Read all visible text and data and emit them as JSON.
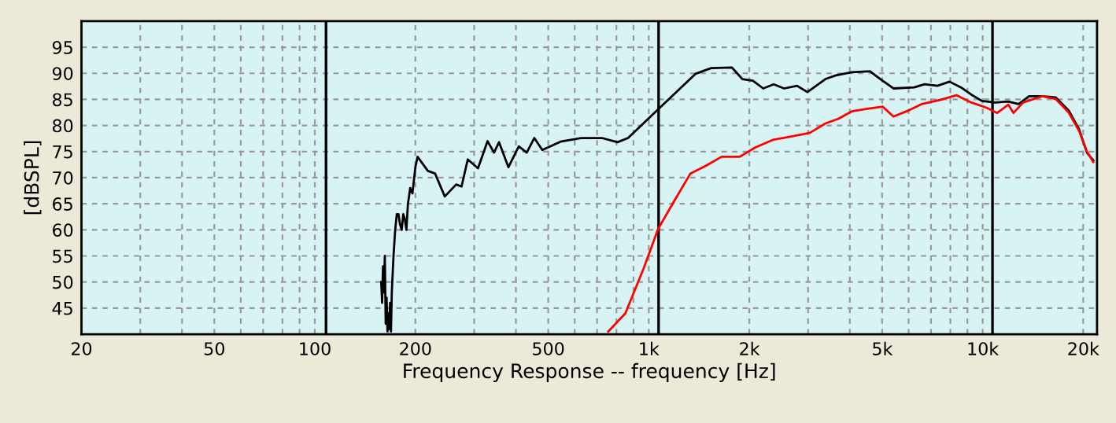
{
  "chart_data": {
    "type": "line",
    "xlabel": "Frequency Response -- frequency [Hz]",
    "ylabel": "[dBSPL]",
    "log": "x",
    "grid": true,
    "line_style": "solid",
    "xlim": [
      20,
      22000
    ],
    "ylim": [
      40,
      100
    ],
    "xticks": [
      20,
      {
        "value": 30,
        "label": null
      },
      {
        "value": 40,
        "label": null
      },
      50,
      {
        "value": 60,
        "label": null
      },
      {
        "value": 70,
        "label": null
      },
      {
        "value": 80,
        "label": null
      },
      {
        "value": 90,
        "label": null
      },
      100,
      200,
      {
        "value": 300,
        "label": null
      },
      {
        "value": 400,
        "label": null
      },
      500,
      {
        "value": 600,
        "label": null
      },
      {
        "value": 700,
        "label": null
      },
      {
        "value": 800,
        "label": null
      },
      {
        "value": 900,
        "label": null
      },
      {
        "value": 1000,
        "label": "1k"
      },
      {
        "value": 2000,
        "label": "2k"
      },
      {
        "value": 3000,
        "label": null
      },
      {
        "value": 4000,
        "label": null
      },
      {
        "value": 5000,
        "label": "5k"
      },
      {
        "value": 6000,
        "label": null
      },
      {
        "value": 7000,
        "label": null
      },
      {
        "value": 8000,
        "label": null
      },
      {
        "value": 9000,
        "label": null
      },
      {
        "value": 10000,
        "label": "10k"
      },
      {
        "value": 20000,
        "label": "20k"
      }
    ],
    "yticks": [
      45,
      50,
      55,
      60,
      65,
      70,
      75,
      80,
      85,
      90,
      95
    ],
    "ref_lines": [
      {
        "axis": "x",
        "value": 108,
        "color": "#000000"
      },
      {
        "axis": "x",
        "value": 1070,
        "color": "#000000"
      },
      {
        "axis": "x",
        "value": 10700,
        "color": "#000000"
      }
    ],
    "series": [
      {
        "color": "#000000",
        "x": [
          158,
          159,
          160,
          161,
          162,
          163,
          164,
          165,
          166,
          167,
          168,
          169,
          170,
          172,
          174,
          176,
          178,
          180,
          182,
          184,
          186,
          188,
          190,
          193,
          196,
          200,
          203,
          218,
          229,
          245,
          265,
          275,
          287,
          308,
          329,
          344,
          356,
          380,
          408,
          431,
          454,
          480,
          544,
          627,
          724,
          806,
          867,
          1067,
          1380,
          1537,
          1775,
          1906,
          2050,
          2201,
          2366,
          2543,
          2780,
          2986,
          3381,
          3635,
          4050,
          4596,
          4938,
          5404,
          6235,
          6700,
          7320,
          7958,
          8610,
          9254,
          9950,
          10890,
          11930,
          12810,
          13770,
          15080,
          16530,
          18090,
          19430,
          20520,
          21440
        ],
        "values": [
          50,
          46,
          53,
          48,
          55,
          42,
          47,
          40.5,
          44,
          41,
          46,
          40.5,
          48,
          55,
          60,
          63,
          63,
          61,
          60,
          63,
          62,
          60,
          65,
          68,
          67,
          72,
          74,
          71.3,
          70.8,
          66.4,
          68.7,
          68.3,
          73.5,
          71.8,
          77,
          74.8,
          76.8,
          72,
          76,
          74.8,
          77.6,
          75.3,
          76.9,
          77.6,
          77.6,
          76.8,
          77.6,
          83.1,
          89.9,
          91,
          91.1,
          88.9,
          88.6,
          87.1,
          87.9,
          87.1,
          87.6,
          86.4,
          88.9,
          89.6,
          90.2,
          90.4,
          88.9,
          87.1,
          87.3,
          87.9,
          87.6,
          88.4,
          87.3,
          85.9,
          84.7,
          84.4,
          84.6,
          84.1,
          85.6,
          85.6,
          85.4,
          82.9,
          79.3,
          74.8,
          73.3
        ]
      },
      {
        "color": "#ff0000",
        "x": [
          756,
          851,
          965,
          1067,
          1196,
          1333,
          1484,
          1652,
          1872,
          2085,
          2366,
          2633,
          3040,
          3381,
          3700,
          4050,
          4510,
          5022,
          5404,
          6010,
          6560,
          7450,
          8340,
          9254,
          10270,
          11050,
          11930,
          12370,
          13220,
          15080,
          16530,
          18090,
          19430,
          20520,
          21440
        ],
        "values": [
          40.5,
          44,
          52.6,
          60.2,
          65.7,
          70.8,
          72.3,
          74,
          74,
          75.8,
          77.3,
          77.8,
          78.6,
          80.4,
          81.3,
          82.7,
          83.2,
          83.6,
          81.7,
          82.9,
          84.1,
          84.9,
          85.8,
          84.4,
          83.4,
          82.4,
          84,
          82.4,
          84.4,
          85.6,
          85.1,
          82.5,
          79,
          75,
          73
        ]
      }
    ]
  }
}
